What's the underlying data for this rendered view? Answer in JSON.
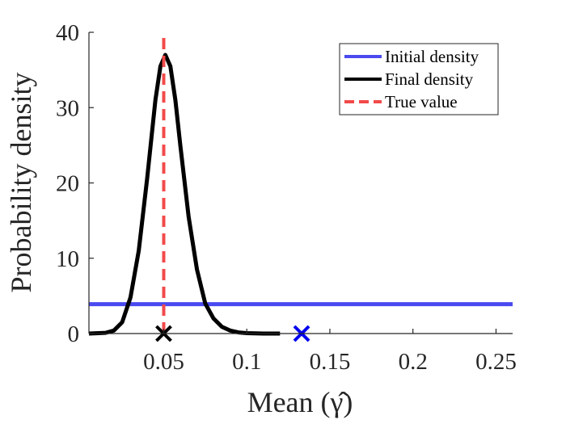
{
  "chart_data": {
    "type": "line",
    "xlabel": "Mean (γ̂)",
    "ylabel": "Probability density",
    "xlim": [
      0.005,
      0.26
    ],
    "ylim": [
      0,
      40
    ],
    "xticks": [
      0.05,
      0.1,
      0.15,
      0.2,
      0.25
    ],
    "xtick_labels": [
      "0.05",
      "0.1",
      "0.15",
      "0.2",
      "0.25"
    ],
    "yticks": [
      0,
      10,
      20,
      30,
      40
    ],
    "ytick_labels": [
      "0",
      "10",
      "20",
      "30",
      "40"
    ],
    "grid": false,
    "legend_position": "top-right",
    "series": [
      {
        "name": "Initial density",
        "color": "#4a4af0",
        "style": "solid",
        "x": [
          0.005,
          0.26
        ],
        "y": [
          3.9,
          3.9
        ]
      },
      {
        "name": "Final density",
        "color": "#000000",
        "style": "solid",
        "x": [
          0.005,
          0.015,
          0.02,
          0.025,
          0.03,
          0.035,
          0.04,
          0.045,
          0.048,
          0.051,
          0.054,
          0.057,
          0.06,
          0.065,
          0.07,
          0.075,
          0.08,
          0.085,
          0.09,
          0.095,
          0.1,
          0.105,
          0.11,
          0.12
        ],
        "y": [
          0.0,
          0.1,
          0.4,
          1.5,
          4.8,
          11.0,
          20.5,
          31.0,
          35.5,
          37.0,
          35.5,
          31.0,
          25.0,
          15.5,
          8.5,
          4.0,
          2.0,
          0.9,
          0.4,
          0.15,
          0.05,
          0.02,
          0.0,
          0.0
        ]
      },
      {
        "name": "True value",
        "color": "#f24a4a",
        "style": "dashed",
        "x": [
          0.05,
          0.05
        ],
        "y": [
          0,
          40
        ]
      }
    ],
    "markers": [
      {
        "x": 0.05,
        "y": 0,
        "color": "#000000",
        "shape": "x"
      },
      {
        "x": 0.133,
        "y": 0,
        "color": "#0000ee",
        "shape": "x"
      }
    ]
  }
}
